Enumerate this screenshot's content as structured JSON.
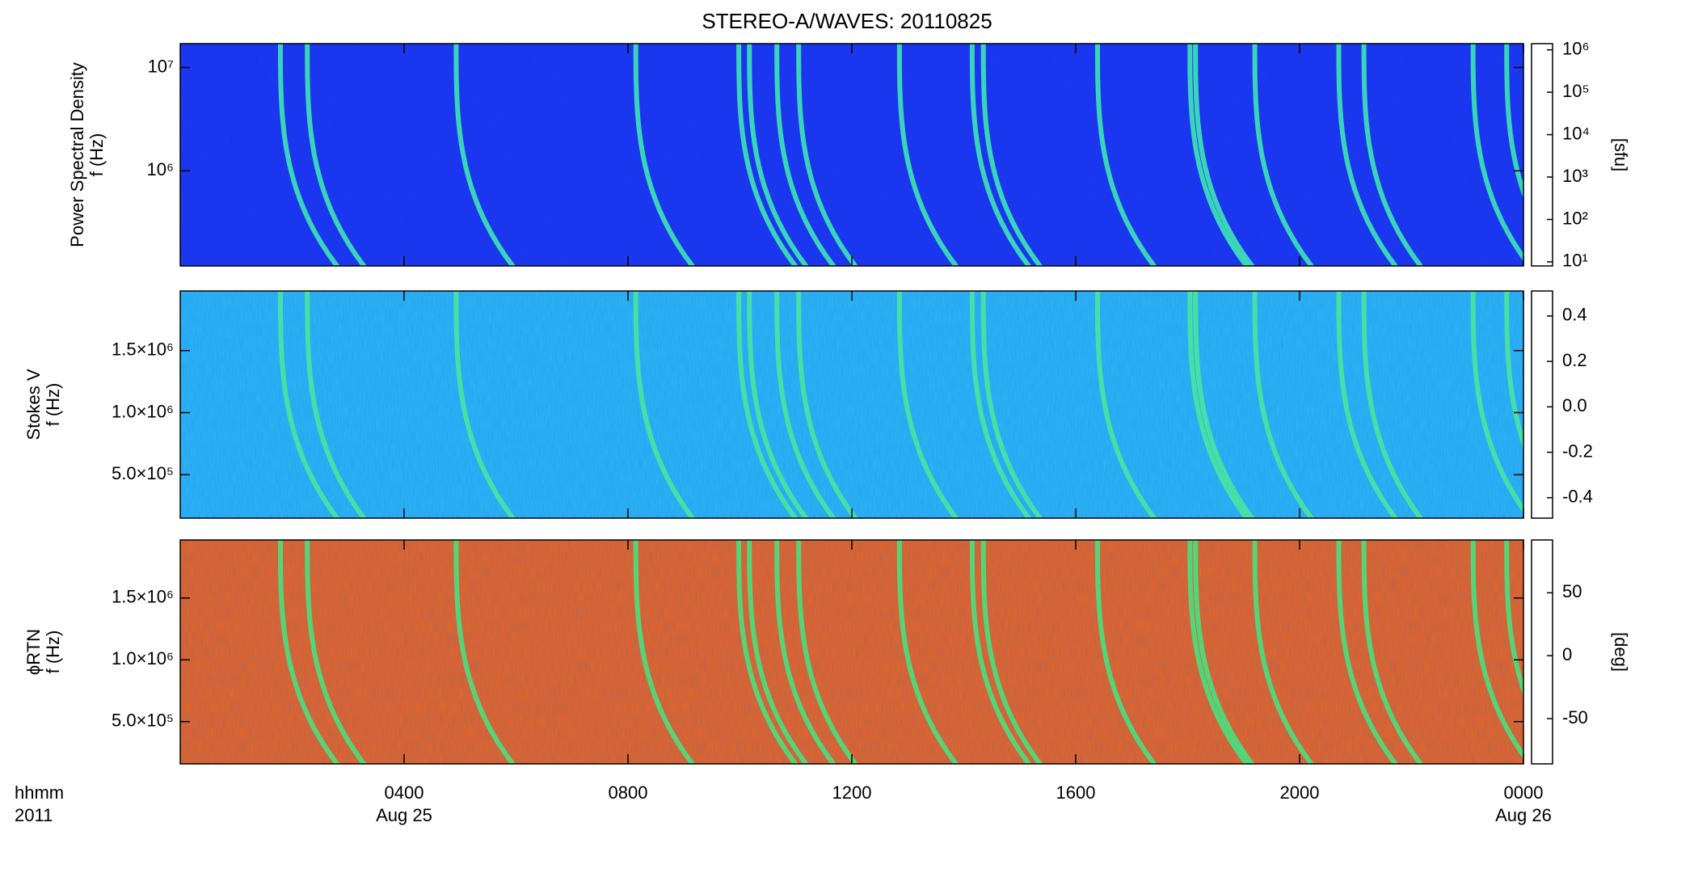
{
  "chart_data": {
    "type": "spectrogram",
    "title": "STEREO-A/WAVES: 20110825",
    "xlim": [
      0,
      24
    ],
    "xticks": [
      {
        "value": 4,
        "label": "0400"
      },
      {
        "value": 8,
        "label": "0800"
      },
      {
        "value": 12,
        "label": "1200"
      },
      {
        "value": 16,
        "label": "1600"
      },
      {
        "value": 20,
        "label": "2000"
      },
      {
        "value": 24,
        "label": "0000"
      }
    ],
    "xdates": [
      {
        "value": 4,
        "label": "Aug 25"
      },
      {
        "value": 24,
        "label": "Aug 26"
      }
    ],
    "xlabel": "hhmm",
    "year": "2011",
    "burst_onsets": [
      1.79,
      2.27,
      4.93,
      8.14,
      9.98,
      10.17,
      10.66,
      11.05,
      12.85,
      14.15,
      14.35,
      16.39,
      18.04,
      18.14,
      19.2,
      20.7,
      21.15,
      23.1,
      23.7
    ],
    "panels": [
      {
        "ylabel": [
          "Power Spectral Density",
          "f (Hz)"
        ],
        "ylog": true,
        "ylim": [
          120000,
          17000000
        ],
        "yticks": [
          {
            "value": 1000000,
            "label": "10⁶"
          },
          {
            "value": 10000000,
            "label": "10⁷"
          }
        ],
        "background": "#1e32ee",
        "burst_color": "#3ff0b0",
        "clog": true,
        "clim": [
          8,
          1400000
        ],
        "cticks": [
          {
            "value": 10,
            "label": "10¹"
          },
          {
            "value": 100,
            "label": "10²"
          },
          {
            "value": 1000,
            "label": "10³"
          },
          {
            "value": 10000,
            "label": "10⁴"
          },
          {
            "value": 100000,
            "label": "10⁵"
          },
          {
            "value": 1000000,
            "label": "10⁶"
          }
        ],
        "cbar_label": "[sfu]"
      },
      {
        "ylabel": [
          "Stokes V",
          "f (Hz)"
        ],
        "ylog": false,
        "ylim": [
          150000,
          1980000
        ],
        "yticks": [
          {
            "value": 500000,
            "label": "5.0×10⁵"
          },
          {
            "value": 1000000,
            "label": "1.0×10⁶"
          },
          {
            "value": 1500000,
            "label": "1.5×10⁶"
          }
        ],
        "background": "#30b8f2",
        "burst_color": "#4ce89a",
        "clog": false,
        "clim": [
          -0.49,
          0.51
        ],
        "cticks": [
          0.4,
          0.2,
          {
            "value": 0,
            "label": "0.0"
          },
          -0.2,
          -0.4
        ]
      },
      {
        "ylabel": [
          "ϕRTN",
          "f (Hz)"
        ],
        "ylog": false,
        "ylim": [
          158000,
          1970000
        ],
        "yticks": [
          {
            "value": 500000,
            "label": "5.0×10⁵"
          },
          {
            "value": 1000000,
            "label": "1.0×10⁶"
          },
          {
            "value": 1500000,
            "label": "1.5×10⁶"
          }
        ],
        "background": "#f0661e",
        "burst_color": "#3fe882",
        "clog": false,
        "clim": [
          -86,
          92
        ],
        "cticks": [
          50,
          0,
          -50
        ],
        "cbar_label": "[deg]"
      }
    ]
  }
}
